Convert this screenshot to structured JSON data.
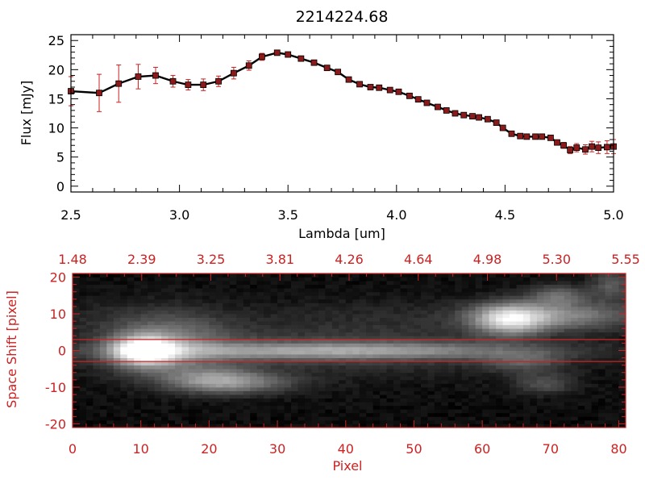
{
  "chart_data": [
    {
      "type": "line",
      "title": "2214224.68",
      "xlabel": "Lambda [um]",
      "ylabel": "Flux [mJy]",
      "xlim": [
        2.5,
        5.0
      ],
      "ylim": [
        -1,
        26
      ],
      "x_ticks": [
        "2.5",
        "3.0",
        "3.5",
        "4.0",
        "4.5",
        "5.0"
      ],
      "y_ticks": [
        "0",
        "5",
        "10",
        "15",
        "20",
        "25"
      ],
      "grid": false,
      "colors": {
        "line": "#000000",
        "marker": "#8b1a1a",
        "errorbar": "#cc2222",
        "axes": "#000000"
      },
      "series": [
        {
          "x": [
            2.5,
            2.63,
            2.72,
            2.81,
            2.89,
            2.97,
            3.04,
            3.11,
            3.18,
            3.25,
            3.32,
            3.38,
            3.45,
            3.5,
            3.56,
            3.62,
            3.68,
            3.73,
            3.78,
            3.83,
            3.88,
            3.92,
            3.97,
            4.01,
            4.06,
            4.1,
            4.14,
            4.19,
            4.23,
            4.27,
            4.31,
            4.35,
            4.38,
            4.42,
            4.46,
            4.49,
            4.53,
            4.57,
            4.6,
            4.64,
            4.67,
            4.71,
            4.74,
            4.77,
            4.8,
            4.83,
            4.87,
            4.9,
            4.93,
            4.97,
            5.0
          ],
          "y": [
            16.3,
            16.0,
            17.6,
            18.8,
            19.0,
            18.0,
            17.4,
            17.4,
            18.0,
            19.4,
            20.7,
            22.2,
            22.9,
            22.6,
            21.9,
            21.2,
            20.3,
            19.6,
            18.3,
            17.5,
            17.0,
            16.9,
            16.5,
            16.2,
            15.5,
            14.9,
            14.3,
            13.6,
            13.0,
            12.5,
            12.2,
            12.0,
            11.8,
            11.5,
            10.9,
            10.0,
            9.0,
            8.6,
            8.5,
            8.5,
            8.5,
            8.3,
            7.5,
            7.0,
            6.2,
            6.6,
            6.3,
            6.8,
            6.6,
            6.7,
            6.8
          ],
          "yerr": [
            2.5,
            3.2,
            3.2,
            2.1,
            1.4,
            1.0,
            0.9,
            1.0,
            0.9,
            1.0,
            0.8,
            0.6,
            0.4,
            0.4,
            0.4,
            0.4,
            0.4,
            0.4,
            0.4,
            0.4,
            0.4,
            0.4,
            0.4,
            0.4,
            0.4,
            0.4,
            0.4,
            0.4,
            0.4,
            0.4,
            0.4,
            0.4,
            0.4,
            0.4,
            0.4,
            0.4,
            0.4,
            0.4,
            0.4,
            0.4,
            0.4,
            0.4,
            0.4,
            0.5,
            0.6,
            0.7,
            0.8,
            0.9,
            1.0,
            1.1,
            1.2
          ]
        }
      ]
    },
    {
      "type": "heatmap",
      "xlabel": "Pixel",
      "ylabel": "Space Shift [pixel]",
      "xlim": [
        0,
        81
      ],
      "ylim": [
        -21,
        21
      ],
      "x_ticks": [
        "0",
        "10",
        "20",
        "30",
        "40",
        "50",
        "60",
        "70",
        "80"
      ],
      "y_ticks": [
        "-20",
        "-10",
        "0",
        "10",
        "20"
      ],
      "top_axis_ticks": [
        "1.48",
        "2.39",
        "3.25",
        "3.81",
        "4.26",
        "4.64",
        "4.98",
        "5.30",
        "5.55"
      ],
      "extraction_aperture": [
        -3,
        3
      ],
      "colormap": "grayscale",
      "colors": {
        "axes": "#cc2222",
        "aperture_lines": "#cc2222"
      },
      "components": [
        {
          "x": 10.5,
          "y": 0,
          "sx": 3.0,
          "sy": 2.6,
          "amp": 1.0
        },
        {
          "x": 14,
          "y": 1,
          "sx": 6,
          "sy": 5.5,
          "amp": 0.35
        },
        {
          "x": 38,
          "y": 0,
          "sx": 20,
          "sy": 1.6,
          "amp": 0.45
        },
        {
          "x": 38,
          "y": 0,
          "sx": 22,
          "sy": 4.5,
          "amp": 0.14
        },
        {
          "x": 21,
          "y": -8,
          "sx": 5,
          "sy": 2.2,
          "amp": 0.42
        },
        {
          "x": 26,
          "y": -9,
          "sx": 6,
          "sy": 2.0,
          "amp": 0.18
        },
        {
          "x": 64,
          "y": 8.5,
          "sx": 3.5,
          "sy": 2.8,
          "amp": 0.68
        },
        {
          "x": 71,
          "y": 9.5,
          "sx": 8,
          "sy": 2.6,
          "amp": 0.42
        },
        {
          "x": 71,
          "y": 15,
          "sx": 3,
          "sy": 2.0,
          "amp": 0.3
        },
        {
          "x": 66,
          "y": -3,
          "sx": 4,
          "sy": 2.0,
          "amp": 0.22
        },
        {
          "x": 69,
          "y": -9,
          "sx": 3,
          "sy": 2.0,
          "amp": 0.2
        },
        {
          "x": 79,
          "y": 18,
          "sx": 2,
          "sy": 3.0,
          "amp": 0.25
        },
        {
          "x": 45,
          "y": 9,
          "sx": 14,
          "sy": 4.0,
          "amp": 0.06
        },
        {
          "x": 10,
          "y": 8,
          "sx": 10,
          "sy": 4.0,
          "amp": 0.07
        }
      ]
    }
  ]
}
